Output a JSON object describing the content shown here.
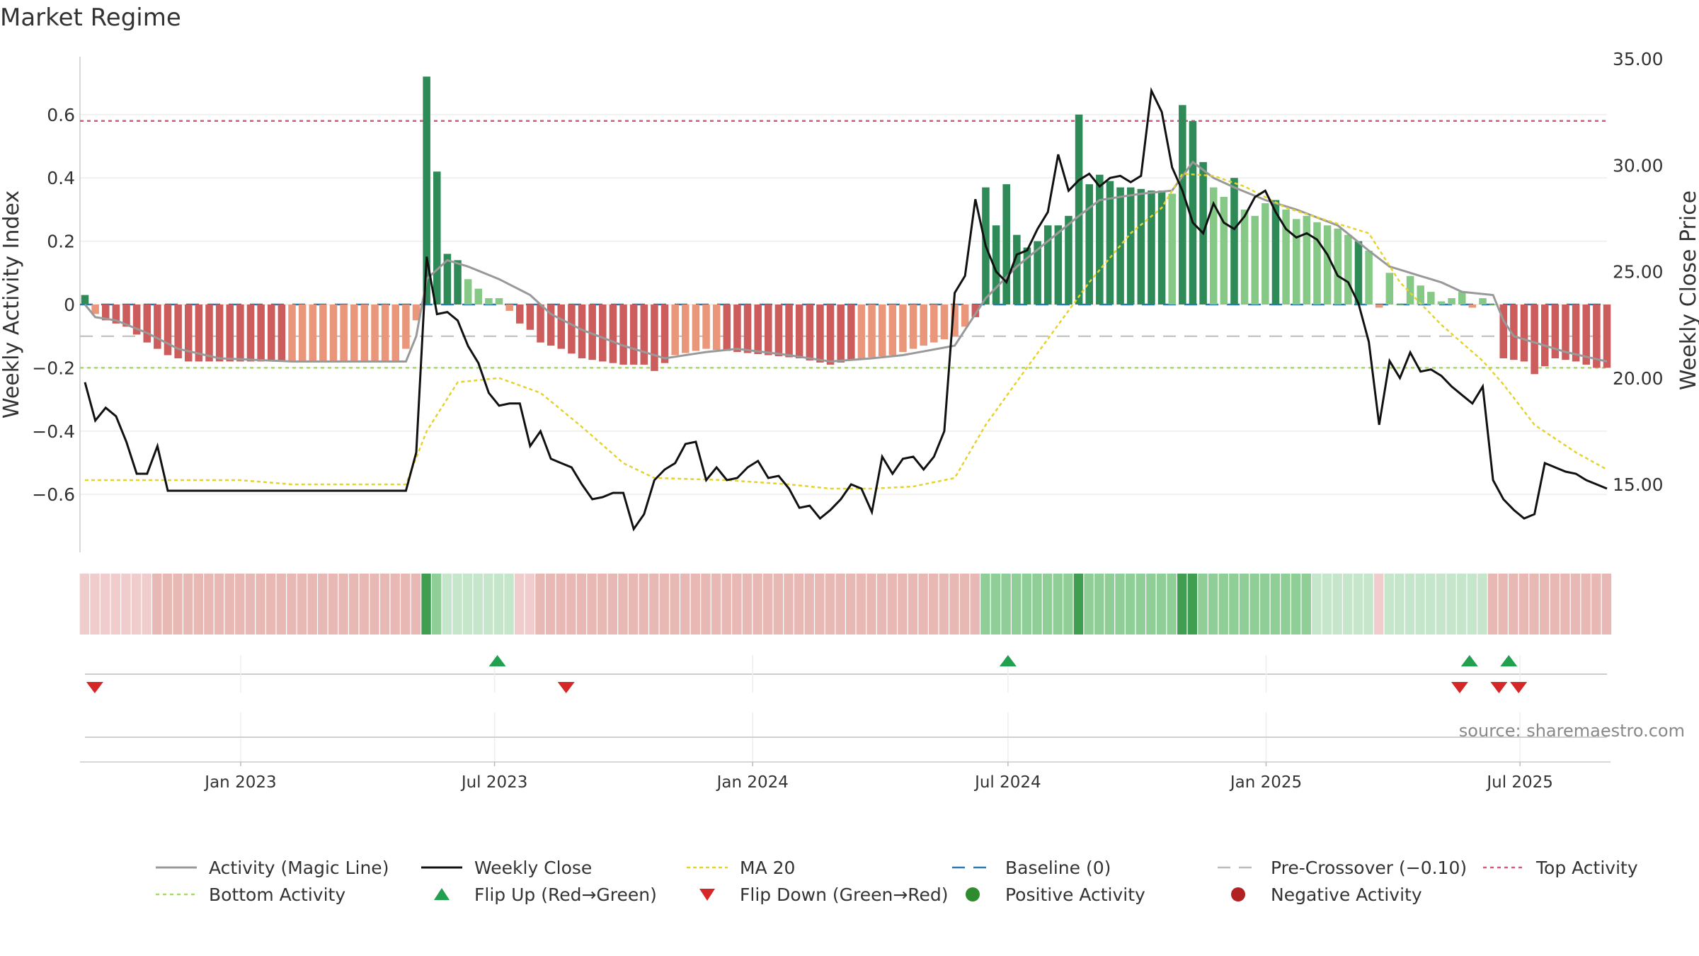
{
  "chart_data": {
    "type": "bar",
    "title": "Market Regime",
    "ylabel_left": "Weekly Activity Index",
    "ylabel_right": "Weekly Close Price",
    "source": "source: sharemaestro.com",
    "ylim_left": [
      -0.78,
      0.78
    ],
    "ylim_right": [
      12.0,
      35.0
    ],
    "yticks_left": [
      0.6,
      0.4,
      0.2,
      0,
      -0.2,
      -0.4,
      -0.6
    ],
    "yticks_left_labels": [
      "0.6",
      "0.4",
      "0.2",
      "0",
      "−0.2",
      "−0.4",
      "−0.6"
    ],
    "yticks_right": [
      35,
      30,
      25,
      20,
      15
    ],
    "yticks_right_labels": [
      "35.00",
      "30.00",
      "25.00",
      "20.00",
      "15.00"
    ],
    "x_start": "2022-09-12",
    "x_end": "2025-09-01",
    "x_ticks": [
      {
        "date": "2023-01-01",
        "label": "Jan 2023"
      },
      {
        "date": "2023-07-01",
        "label": "Jul 2023"
      },
      {
        "date": "2024-01-01",
        "label": "Jan 2024"
      },
      {
        "date": "2024-07-01",
        "label": "Jul 2024"
      },
      {
        "date": "2025-01-01",
        "label": "Jan 2025"
      },
      {
        "date": "2025-07-01",
        "label": "Jul 2025"
      }
    ],
    "reference_lines": {
      "top_activity": 0.58,
      "bottom_activity": -0.2,
      "pre_crossover": -0.1,
      "baseline": 0
    },
    "activity_anchors": [
      [
        0,
        0.03
      ],
      [
        1,
        -0.03
      ],
      [
        2,
        -0.05
      ],
      [
        4,
        -0.07
      ],
      [
        6,
        -0.12
      ],
      [
        8,
        -0.16
      ],
      [
        10,
        -0.18
      ],
      [
        20,
        -0.18
      ],
      [
        28,
        -0.18
      ],
      [
        30,
        -0.18
      ],
      [
        31,
        -0.14
      ],
      [
        32,
        -0.05
      ],
      [
        33,
        0.72
      ],
      [
        34,
        0.42
      ],
      [
        35,
        0.16
      ],
      [
        36,
        0.14
      ],
      [
        37,
        0.08
      ],
      [
        38,
        0.05
      ],
      [
        39,
        0.02
      ],
      [
        40,
        0.02
      ],
      [
        41,
        -0.02
      ],
      [
        42,
        -0.06
      ],
      [
        43,
        -0.08
      ],
      [
        44,
        -0.12
      ],
      [
        46,
        -0.14
      ],
      [
        48,
        -0.17
      ],
      [
        50,
        -0.18
      ],
      [
        52,
        -0.19
      ],
      [
        54,
        -0.19
      ],
      [
        55,
        -0.21
      ],
      [
        57,
        -0.16
      ],
      [
        60,
        -0.14
      ],
      [
        63,
        -0.15
      ],
      [
        66,
        -0.16
      ],
      [
        69,
        -0.17
      ],
      [
        72,
        -0.19
      ],
      [
        75,
        -0.17
      ],
      [
        78,
        -0.16
      ],
      [
        80,
        -0.14
      ],
      [
        82,
        -0.12
      ],
      [
        84,
        -0.1
      ],
      [
        86,
        -0.04
      ],
      [
        87,
        0.37
      ],
      [
        88,
        0.25
      ],
      [
        89,
        0.38
      ],
      [
        90,
        0.22
      ],
      [
        91,
        0.18
      ],
      [
        92,
        0.2
      ],
      [
        93,
        0.25
      ],
      [
        94,
        0.25
      ],
      [
        95,
        0.28
      ],
      [
        96,
        0.6
      ],
      [
        97,
        0.38
      ],
      [
        98,
        0.41
      ],
      [
        100,
        0.37
      ],
      [
        101,
        0.37
      ],
      [
        103,
        0.36
      ],
      [
        104,
        0.36
      ],
      [
        105,
        0.35
      ],
      [
        106,
        0.63
      ],
      [
        107,
        0.58
      ],
      [
        108,
        0.45
      ],
      [
        109,
        0.37
      ],
      [
        110,
        0.34
      ],
      [
        111,
        0.4
      ],
      [
        112,
        0.3
      ],
      [
        113,
        0.28
      ],
      [
        114,
        0.32
      ],
      [
        115,
        0.33
      ],
      [
        116,
        0.3
      ],
      [
        117,
        0.27
      ],
      [
        118,
        0.28
      ],
      [
        119,
        0.26
      ],
      [
        120,
        0.25
      ],
      [
        121,
        0.24
      ],
      [
        122,
        0.22
      ],
      [
        123,
        0.2
      ],
      [
        124,
        0.17
      ],
      [
        125,
        -0.01
      ],
      [
        126,
        0.1
      ],
      [
        127,
        0.0
      ],
      [
        128,
        0.09
      ],
      [
        129,
        0.06
      ],
      [
        130,
        0.04
      ],
      [
        131,
        0.01
      ],
      [
        132,
        0.02
      ],
      [
        133,
        0.04
      ],
      [
        134,
        -0.01
      ],
      [
        135,
        0.02
      ],
      [
        136,
        0.0
      ],
      [
        137,
        -0.17
      ],
      [
        139,
        -0.18
      ],
      [
        140,
        -0.22
      ],
      [
        142,
        -0.17
      ],
      [
        144,
        -0.18
      ],
      [
        146,
        -0.2
      ],
      [
        147,
        -0.2
      ]
    ],
    "magic_anchors": [
      [
        0,
        0
      ],
      [
        1,
        -0.04
      ],
      [
        3,
        -0.05
      ],
      [
        6,
        -0.09
      ],
      [
        9,
        -0.14
      ],
      [
        13,
        -0.17
      ],
      [
        20,
        -0.18
      ],
      [
        31,
        -0.18
      ],
      [
        32,
        -0.1
      ],
      [
        33,
        0.08
      ],
      [
        35,
        0.14
      ],
      [
        37,
        0.12
      ],
      [
        40,
        0.08
      ],
      [
        43,
        0.03
      ],
      [
        45,
        -0.03
      ],
      [
        48,
        -0.08
      ],
      [
        52,
        -0.13
      ],
      [
        56,
        -0.17
      ],
      [
        60,
        -0.15
      ],
      [
        63,
        -0.14
      ],
      [
        68,
        -0.16
      ],
      [
        72,
        -0.18
      ],
      [
        76,
        -0.17
      ],
      [
        79,
        -0.16
      ],
      [
        84,
        -0.13
      ],
      [
        87,
        0.02
      ],
      [
        90,
        0.12
      ],
      [
        93,
        0.2
      ],
      [
        96,
        0.28
      ],
      [
        98,
        0.33
      ],
      [
        102,
        0.35
      ],
      [
        105,
        0.36
      ],
      [
        107,
        0.45
      ],
      [
        109,
        0.4
      ],
      [
        111,
        0.37
      ],
      [
        114,
        0.33
      ],
      [
        117,
        0.3
      ],
      [
        121,
        0.25
      ],
      [
        124,
        0.17
      ],
      [
        126,
        0.12
      ],
      [
        128,
        0.1
      ],
      [
        131,
        0.07
      ],
      [
        133,
        0.04
      ],
      [
        136,
        0.03
      ],
      [
        137,
        -0.05
      ],
      [
        138,
        -0.1
      ],
      [
        140,
        -0.12
      ],
      [
        143,
        -0.15
      ],
      [
        147,
        -0.18
      ]
    ],
    "close_anchors": [
      [
        0,
        19.8
      ],
      [
        1,
        18.0
      ],
      [
        2,
        18.6
      ],
      [
        3,
        18.2
      ],
      [
        4,
        17.0
      ],
      [
        5,
        15.5
      ],
      [
        6,
        15.5
      ],
      [
        7,
        16.8
      ],
      [
        8,
        14.7
      ],
      [
        10,
        14.7
      ],
      [
        20,
        14.7
      ],
      [
        30,
        14.7
      ],
      [
        31,
        14.7
      ],
      [
        32,
        16.5
      ],
      [
        33,
        25.7
      ],
      [
        34,
        23.0
      ],
      [
        35,
        23.1
      ],
      [
        36,
        22.7
      ],
      [
        37,
        21.5
      ],
      [
        38,
        20.7
      ],
      [
        39,
        19.3
      ],
      [
        40,
        18.7
      ],
      [
        41,
        18.8
      ],
      [
        42,
        18.8
      ],
      [
        43,
        16.8
      ],
      [
        44,
        17.5
      ],
      [
        45,
        16.2
      ],
      [
        46,
        16.0
      ],
      [
        47,
        15.8
      ],
      [
        48,
        15.0
      ],
      [
        49,
        14.3
      ],
      [
        50,
        14.4
      ],
      [
        51,
        14.6
      ],
      [
        52,
        14.6
      ],
      [
        53,
        12.9
      ],
      [
        54,
        13.6
      ],
      [
        55,
        15.2
      ],
      [
        56,
        15.7
      ],
      [
        57,
        16.0
      ],
      [
        58,
        16.9
      ],
      [
        59,
        17.0
      ],
      [
        60,
        15.2
      ],
      [
        61,
        15.8
      ],
      [
        62,
        15.2
      ],
      [
        63,
        15.3
      ],
      [
        64,
        15.8
      ],
      [
        65,
        16.1
      ],
      [
        66,
        15.3
      ],
      [
        67,
        15.4
      ],
      [
        68,
        14.8
      ],
      [
        69,
        13.9
      ],
      [
        70,
        14.0
      ],
      [
        71,
        13.4
      ],
      [
        72,
        13.8
      ],
      [
        73,
        14.3
      ],
      [
        74,
        15.0
      ],
      [
        75,
        14.8
      ],
      [
        76,
        13.7
      ],
      [
        77,
        16.3
      ],
      [
        78,
        15.5
      ],
      [
        79,
        16.2
      ],
      [
        80,
        16.3
      ],
      [
        81,
        15.7
      ],
      [
        82,
        16.3
      ],
      [
        83,
        17.5
      ],
      [
        84,
        24.0
      ],
      [
        85,
        24.8
      ],
      [
        86,
        28.4
      ],
      [
        87,
        26.2
      ],
      [
        88,
        25.0
      ],
      [
        89,
        24.5
      ],
      [
        90,
        25.8
      ],
      [
        91,
        26.0
      ],
      [
        92,
        27.0
      ],
      [
        93,
        27.8
      ],
      [
        94,
        30.5
      ],
      [
        95,
        28.8
      ],
      [
        96,
        29.3
      ],
      [
        97,
        29.6
      ],
      [
        98,
        29.0
      ],
      [
        99,
        29.4
      ],
      [
        100,
        29.5
      ],
      [
        101,
        29.2
      ],
      [
        102,
        29.5
      ],
      [
        103,
        33.5
      ],
      [
        104,
        32.5
      ],
      [
        105,
        29.9
      ],
      [
        106,
        28.8
      ],
      [
        107,
        27.3
      ],
      [
        108,
        26.8
      ],
      [
        109,
        28.2
      ],
      [
        110,
        27.3
      ],
      [
        111,
        27.0
      ],
      [
        112,
        27.6
      ],
      [
        113,
        28.5
      ],
      [
        114,
        28.8
      ],
      [
        115,
        27.8
      ],
      [
        116,
        27.0
      ],
      [
        117,
        26.6
      ],
      [
        118,
        26.8
      ],
      [
        119,
        26.5
      ],
      [
        120,
        25.8
      ],
      [
        121,
        24.8
      ],
      [
        122,
        24.5
      ],
      [
        123,
        23.5
      ],
      [
        124,
        21.7
      ],
      [
        125,
        17.8
      ],
      [
        126,
        20.8
      ],
      [
        127,
        20.0
      ],
      [
        128,
        21.2
      ],
      [
        129,
        20.3
      ],
      [
        130,
        20.4
      ],
      [
        131,
        20.1
      ],
      [
        132,
        19.6
      ],
      [
        133,
        19.2
      ],
      [
        134,
        18.8
      ],
      [
        135,
        19.6
      ],
      [
        136,
        15.2
      ],
      [
        137,
        14.3
      ],
      [
        138,
        13.8
      ],
      [
        139,
        13.4
      ],
      [
        140,
        13.6
      ],
      [
        141,
        16.0
      ],
      [
        142,
        15.8
      ],
      [
        143,
        15.6
      ],
      [
        144,
        15.5
      ],
      [
        145,
        15.2
      ],
      [
        146,
        15.0
      ],
      [
        147,
        14.8
      ]
    ],
    "ma20_anchors": [
      [
        0,
        15.2
      ],
      [
        15,
        15.2
      ],
      [
        20,
        15.0
      ],
      [
        31,
        15.0
      ],
      [
        33,
        17.5
      ],
      [
        36,
        19.8
      ],
      [
        40,
        20.0
      ],
      [
        44,
        19.3
      ],
      [
        48,
        17.7
      ],
      [
        52,
        16.0
      ],
      [
        55,
        15.3
      ],
      [
        62,
        15.2
      ],
      [
        68,
        15.0
      ],
      [
        72,
        14.8
      ],
      [
        76,
        14.8
      ],
      [
        80,
        14.9
      ],
      [
        84,
        15.3
      ],
      [
        87,
        17.8
      ],
      [
        91,
        20.5
      ],
      [
        94,
        22.5
      ],
      [
        97,
        24.5
      ],
      [
        101,
        26.8
      ],
      [
        104,
        28.0
      ],
      [
        106,
        29.6
      ],
      [
        109,
        29.5
      ],
      [
        112,
        29.0
      ],
      [
        116,
        28.0
      ],
      [
        120,
        27.4
      ],
      [
        124,
        26.8
      ],
      [
        127,
        24.5
      ],
      [
        131,
        22.5
      ],
      [
        135,
        20.8
      ],
      [
        137,
        19.7
      ],
      [
        140,
        17.8
      ],
      [
        144,
        16.5
      ],
      [
        147,
        15.7
      ]
    ],
    "regime_segments": [
      [
        0,
        1,
        "r"
      ],
      [
        1,
        7,
        "r"
      ],
      [
        7,
        33,
        "R"
      ],
      [
        33,
        34,
        "G"
      ],
      [
        34,
        35,
        "g"
      ],
      [
        35,
        42,
        "l"
      ],
      [
        42,
        44,
        "r"
      ],
      [
        44,
        87,
        "R"
      ],
      [
        87,
        96,
        "g"
      ],
      [
        96,
        97,
        "G"
      ],
      [
        97,
        100,
        "g"
      ],
      [
        100,
        106,
        "g"
      ],
      [
        106,
        107,
        "G"
      ],
      [
        107,
        108,
        "G"
      ],
      [
        108,
        119,
        "g"
      ],
      [
        119,
        125,
        "l"
      ],
      [
        125,
        126,
        "r"
      ],
      [
        126,
        134,
        "l"
      ],
      [
        134,
        136,
        "l"
      ],
      [
        136,
        148,
        "R"
      ]
    ],
    "regime_colors": {
      "r": "#f0cccc",
      "R": "#e8b8b4",
      "l": "#c6e6cb",
      "g": "#8fcf97",
      "G": "#3f9e50"
    },
    "flip_up_dates": [
      "2023-07-03",
      "2024-07-01",
      "2025-05-26",
      "2025-06-23"
    ],
    "flip_down_dates": [
      "2022-09-19",
      "2023-08-21",
      "2025-05-19",
      "2025-06-16",
      "2025-06-30"
    ],
    "legend": [
      "Activity (Magic Line)",
      "Weekly Close",
      "MA 20",
      "Baseline (0)",
      "Pre-Crossover (−0.10)",
      "Top Activity",
      "Bottom Activity",
      "Flip Up (Red→Green)",
      "Flip Down (Green→Red)",
      "Positive Activity",
      "Negative Activity"
    ],
    "colors": {
      "pos_dark": "#2e8b57",
      "pos_light": "#86c987",
      "neg_dark": "#cd5c5c",
      "neg_light": "#e9967a",
      "magic": "#999999",
      "close": "#111111",
      "ma20": "#e6d22e",
      "baseline": "#2a7ab0",
      "pre": "#bbbbbb",
      "top": "#e05575",
      "bottom": "#a6d96a",
      "flip_up": "#22a050",
      "flip_down": "#d62728",
      "pos_dot": "#2e8b2e",
      "neg_dot": "#b22222"
    }
  }
}
